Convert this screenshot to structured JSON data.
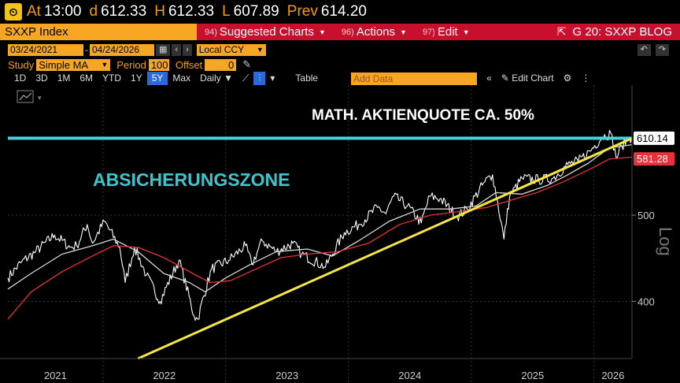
{
  "quote": {
    "at_label": "At",
    "at_value": "13:00",
    "d_label": "d",
    "d_value": "612.33",
    "h_label": "H",
    "h_value": "612.33",
    "l_label": "L",
    "l_value": "607.89",
    "prev_label": "Prev",
    "prev_value": "614.20"
  },
  "function_bar": {
    "security": "SXXP Index",
    "menus": [
      {
        "num": "94)",
        "label": "Suggested Charts"
      },
      {
        "num": "96)",
        "label": "Actions"
      },
      {
        "num": "97)",
        "label": "Edit"
      }
    ],
    "right_label": "G 20: SXXP BLOG"
  },
  "range": {
    "start_date": "03/24/2021",
    "end_date": "04/24/2026",
    "currency": "Local CCY"
  },
  "study": {
    "study_label": "Study",
    "study_value": "Simple MA",
    "period_label": "Period",
    "period_value": "100",
    "offset_label": "Offset",
    "offset_value": "0"
  },
  "periods": {
    "buttons": [
      "1D",
      "3D",
      "1M",
      "6M",
      "YTD",
      "1Y",
      "5Y",
      "Max"
    ],
    "active": "5Y",
    "frequency": "Daily",
    "table_label": "Table",
    "add_data_placeholder": "Add Data",
    "edit_chart_label": "Edit Chart"
  },
  "chart_data": {
    "type": "line",
    "yscale": "log",
    "ylabel": "Log",
    "ylim": [
      345,
      700
    ],
    "yticks": [
      400,
      500
    ],
    "xlim": [
      "2021-03-24",
      "2026-04-24"
    ],
    "xticks": [
      "2021",
      "2022",
      "2023",
      "2024",
      "2025",
      "2026"
    ],
    "annotations": {
      "upper_text": "MATH. AKTIENQUOTE CA. 50%",
      "zone_text": "ABSICHERUNGSZONE"
    },
    "price_labels": {
      "last": "610.14",
      "ma": "581.28"
    },
    "horizontal_line": {
      "value": 610.14,
      "color": "#4fd1d9"
    },
    "trendline": {
      "start": [
        "2022-04-15",
        345
      ],
      "end": [
        "2026-04-24",
        610
      ],
      "color": "#f5e642"
    },
    "series": [
      {
        "color": "#ffffff",
        "points": [
          [
            "2021-03-24",
            425
          ],
          [
            "2021-05-01",
            442
          ],
          [
            "2021-06-15",
            455
          ],
          [
            "2021-08-10",
            475
          ],
          [
            "2021-09-25",
            460
          ],
          [
            "2021-10-15",
            462
          ],
          [
            "2021-11-15",
            488
          ],
          [
            "2021-12-01",
            465
          ],
          [
            "2022-01-05",
            492
          ],
          [
            "2022-02-20",
            460
          ],
          [
            "2022-03-08",
            420
          ],
          [
            "2022-04-05",
            460
          ],
          [
            "2022-05-10",
            428
          ],
          [
            "2022-06-20",
            400
          ],
          [
            "2022-08-15",
            445
          ],
          [
            "2022-09-29",
            385
          ],
          [
            "2022-10-10",
            382
          ],
          [
            "2022-11-20",
            435
          ],
          [
            "2023-01-10",
            445
          ],
          [
            "2023-03-01",
            462
          ],
          [
            "2023-03-20",
            440
          ],
          [
            "2023-04-20",
            468
          ],
          [
            "2023-06-01",
            455
          ],
          [
            "2023-07-20",
            465
          ],
          [
            "2023-08-15",
            452
          ],
          [
            "2023-10-25",
            437
          ],
          [
            "2023-12-20",
            478
          ],
          [
            "2024-02-01",
            488
          ],
          [
            "2024-03-28",
            510
          ],
          [
            "2024-04-22",
            502
          ],
          [
            "2024-05-15",
            525
          ],
          [
            "2024-06-25",
            512
          ],
          [
            "2024-08-05",
            490
          ],
          [
            "2024-08-30",
            525
          ],
          [
            "2024-09-30",
            522
          ],
          [
            "2024-11-20",
            498
          ],
          [
            "2024-12-20",
            508
          ],
          [
            "2025-02-10",
            545
          ],
          [
            "2025-03-05",
            555
          ],
          [
            "2025-04-08",
            470
          ],
          [
            "2025-04-25",
            525
          ],
          [
            "2025-06-01",
            550
          ],
          [
            "2025-07-20",
            548
          ],
          [
            "2025-09-01",
            550
          ],
          [
            "2025-10-15",
            570
          ],
          [
            "2025-11-15",
            575
          ],
          [
            "2025-12-20",
            590
          ],
          [
            "2026-01-25",
            612
          ],
          [
            "2026-02-20",
            618
          ],
          [
            "2026-03-08",
            580
          ],
          [
            "2026-03-25",
            598
          ],
          [
            "2026-04-15",
            612
          ],
          [
            "2026-04-24",
            610
          ]
        ]
      },
      {
        "color": "#d7d7d7",
        "points": [
          [
            "2021-03-24",
            413
          ],
          [
            "2021-06-01",
            430
          ],
          [
            "2021-09-01",
            452
          ],
          [
            "2021-12-01",
            462
          ],
          [
            "2022-02-01",
            470
          ],
          [
            "2022-04-15",
            455
          ],
          [
            "2022-07-01",
            430
          ],
          [
            "2022-09-15",
            420
          ],
          [
            "2022-11-01",
            410
          ],
          [
            "2023-01-01",
            425
          ],
          [
            "2023-03-15",
            440
          ],
          [
            "2023-06-01",
            455
          ],
          [
            "2023-09-01",
            458
          ],
          [
            "2023-11-15",
            450
          ],
          [
            "2024-02-01",
            468
          ],
          [
            "2024-05-01",
            492
          ],
          [
            "2024-08-01",
            508
          ],
          [
            "2024-11-01",
            508
          ],
          [
            "2025-01-15",
            512
          ],
          [
            "2025-03-15",
            530
          ],
          [
            "2025-06-01",
            528
          ],
          [
            "2025-08-15",
            540
          ],
          [
            "2025-10-15",
            555
          ],
          [
            "2025-12-15",
            572
          ],
          [
            "2026-02-15",
            595
          ],
          [
            "2026-04-24",
            600
          ]
        ]
      },
      {
        "color": "#e8313a",
        "points": [
          [
            "2021-03-24",
            382
          ],
          [
            "2021-06-01",
            410
          ],
          [
            "2021-09-01",
            432
          ],
          [
            "2021-12-01",
            450
          ],
          [
            "2022-02-01",
            462
          ],
          [
            "2022-04-15",
            460
          ],
          [
            "2022-07-01",
            448
          ],
          [
            "2022-09-15",
            432
          ],
          [
            "2022-11-15",
            420
          ],
          [
            "2023-01-15",
            422
          ],
          [
            "2023-04-01",
            435
          ],
          [
            "2023-06-15",
            448
          ],
          [
            "2023-09-01",
            452
          ],
          [
            "2023-12-01",
            455
          ],
          [
            "2024-03-01",
            465
          ],
          [
            "2024-06-01",
            488
          ],
          [
            "2024-09-01",
            500
          ],
          [
            "2024-12-01",
            505
          ],
          [
            "2025-02-15",
            510
          ],
          [
            "2025-05-01",
            520
          ],
          [
            "2025-07-15",
            530
          ],
          [
            "2025-10-01",
            545
          ],
          [
            "2025-12-15",
            562
          ],
          [
            "2026-02-15",
            578
          ],
          [
            "2026-04-24",
            581
          ]
        ]
      }
    ]
  }
}
